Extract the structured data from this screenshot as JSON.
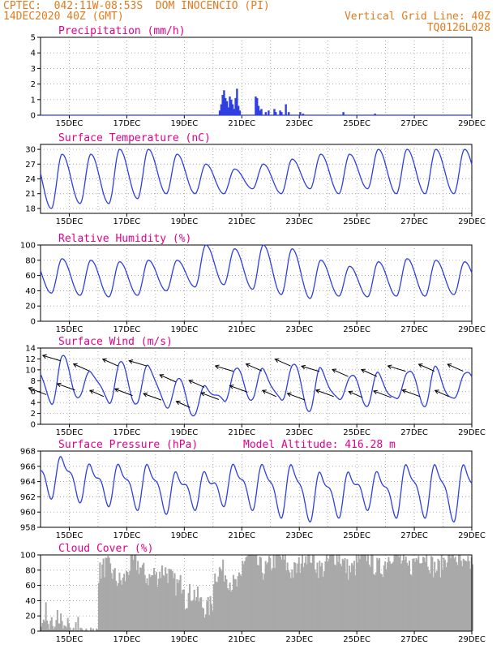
{
  "header": {
    "line1_left": "CPTEC:  042:11W-08:53S  DOM INOCENCIO (PI)",
    "line2_left": "14DEC2020 40Z (GMT)",
    "line2_right": "Vertical Grid Line: 40Z",
    "line3_right": "TQ0126L028"
  },
  "colors": {
    "header": "#e07b1f",
    "title": "#e0008c",
    "line": "#2f3fe0",
    "bar": "#2f3fe0",
    "cloud": "#a9a9a9",
    "arrow": "#000000"
  },
  "x_tick_labels": [
    "15DEC",
    "17DEC",
    "19DEC",
    "21DEC",
    "23DEC",
    "25DEC",
    "27DEC",
    "29DEC"
  ],
  "chart_data": [
    {
      "type": "bar",
      "title": "Precipitation (mm/h)",
      "ylim": [
        0,
        5
      ],
      "yticks": [
        0,
        1,
        2,
        3,
        4,
        5
      ],
      "x_unit": "days since 14DEC2020 00Z",
      "x": [
        6.2,
        6.25,
        6.3,
        6.35,
        6.4,
        6.45,
        6.5,
        6.55,
        6.6,
        6.65,
        6.7,
        6.75,
        6.8,
        6.85,
        6.9,
        7.45,
        7.5,
        7.55,
        7.6,
        7.65,
        7.8,
        7.9,
        8.1,
        8.15,
        8.3,
        8.35,
        8.5,
        8.6,
        9.0,
        9.1,
        10.5,
        11.6
      ],
      "values": [
        0.3,
        0.7,
        1.3,
        1.6,
        1.1,
        0.9,
        0.5,
        1.2,
        1.0,
        0.7,
        0.4,
        1.1,
        1.7,
        0.6,
        0.3,
        1.2,
        1.1,
        0.6,
        0.3,
        0.4,
        0.2,
        0.3,
        0.4,
        0.2,
        0.3,
        0.2,
        0.7,
        0.2,
        0.2,
        0.1,
        0.2,
        0.1
      ]
    },
    {
      "type": "line",
      "title": "Surface Temperature (nC)",
      "ylim": [
        17,
        31
      ],
      "yticks": [
        18,
        21,
        24,
        27,
        30
      ],
      "series": [
        {
          "min": [
            18,
            19,
            19,
            20,
            21,
            21,
            21,
            22,
            21,
            22,
            21,
            22,
            21,
            21,
            21
          ],
          "max": [
            29,
            29,
            30,
            30,
            29,
            27,
            26,
            27,
            28,
            29,
            29,
            30,
            30,
            30,
            30
          ]
        }
      ]
    },
    {
      "type": "line",
      "title": "Relative Humidity (%)",
      "ylim": [
        0,
        100
      ],
      "yticks": [
        0,
        20,
        40,
        60,
        80,
        100
      ],
      "series": [
        {
          "min": [
            37,
            34,
            32,
            34,
            40,
            45,
            48,
            42,
            35,
            30,
            33,
            32,
            33,
            33,
            35
          ],
          "max": [
            82,
            80,
            78,
            80,
            80,
            100,
            95,
            100,
            95,
            80,
            72,
            78,
            82,
            80,
            78
          ]
        }
      ]
    },
    {
      "type": "line",
      "title": "Surface Wind (m/s)",
      "ylim": [
        0,
        14
      ],
      "yticks": [
        0,
        2,
        4,
        6,
        8,
        10,
        12,
        14
      ],
      "series": [
        {
          "min": [
            4,
            5,
            4,
            4,
            3,
            2,
            4,
            5,
            4,
            3,
            4,
            4,
            4,
            4,
            4
          ],
          "max": [
            12,
            10,
            11,
            11,
            8,
            7,
            10,
            10,
            11,
            10,
            9,
            9,
            10,
            10,
            10
          ]
        }
      ]
    },
    {
      "type": "line",
      "title": "Surface Pressure (hPa)",
      "subtitle": "Model Altitude: 416.28 m",
      "ylim": [
        958,
        968
      ],
      "yticks": [
        958,
        960,
        962,
        964,
        966,
        968
      ],
      "series": [
        {
          "min": [
            962.5,
            962,
            961.5,
            961,
            960.5,
            961,
            961.5,
            961,
            960,
            959.5,
            960,
            961,
            960,
            960,
            959.5
          ],
          "max": [
            967,
            966,
            966,
            966,
            965,
            965,
            966,
            966,
            966,
            965,
            965,
            965,
            966,
            966,
            966
          ]
        }
      ]
    },
    {
      "type": "area",
      "title": "Cloud Cover (%)",
      "ylim": [
        0,
        100
      ],
      "yticks": [
        0,
        20,
        40,
        60,
        80,
        100
      ],
      "daily_mean": [
        20,
        5,
        75,
        80,
        70,
        40,
        70,
        90,
        88,
        92,
        90,
        92,
        93,
        92,
        93
      ]
    }
  ]
}
